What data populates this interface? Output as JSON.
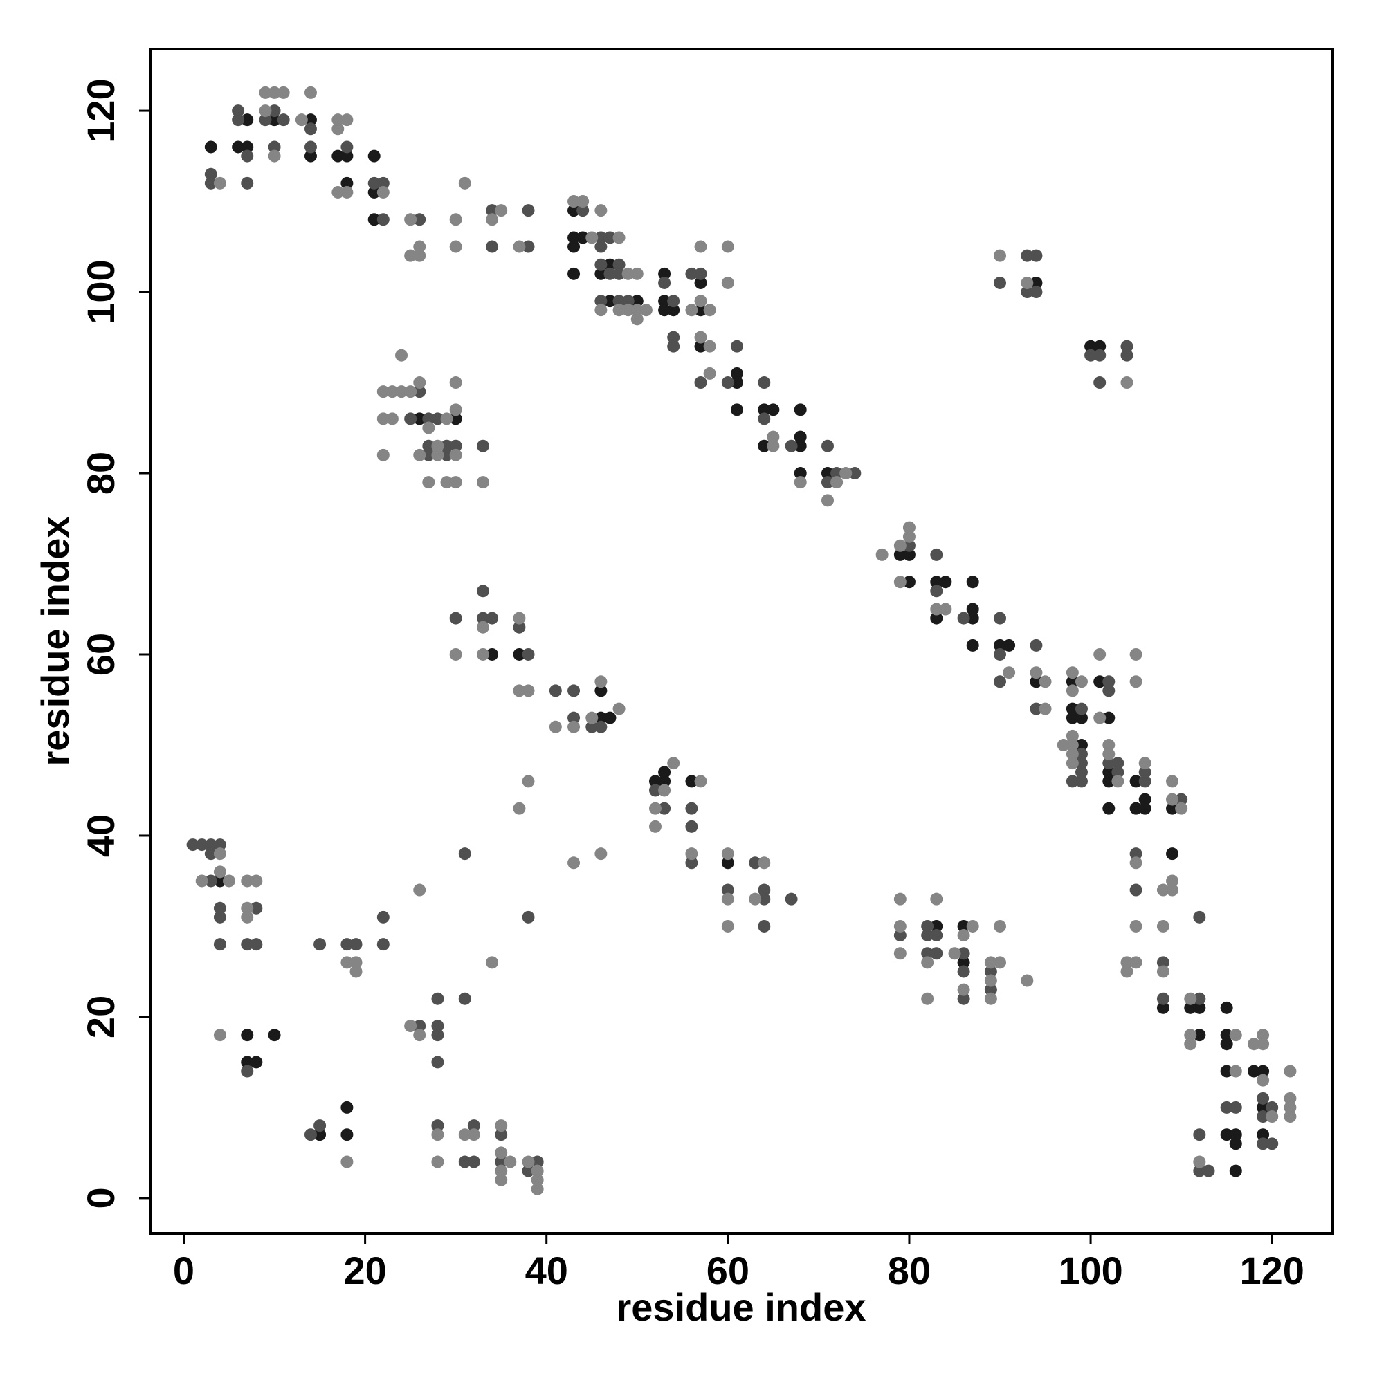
{
  "chart_data": {
    "type": "scatter",
    "x_label": "residue index",
    "y_label": "residue index",
    "xlim": [
      -3.7,
      126.7
    ],
    "ylim": [
      -3.9,
      126.8
    ],
    "xticks": [
      0,
      20,
      40,
      60,
      80,
      100,
      120
    ],
    "yticks": [
      0,
      20,
      40,
      60,
      80,
      100,
      120
    ],
    "grid": false,
    "series": [
      {
        "color": "#1a1a1a",
        "x": [
          3,
          6,
          7,
          7,
          10,
          14,
          14,
          17,
          18,
          18,
          21,
          21,
          21,
          43,
          43,
          43,
          43,
          44,
          46,
          47,
          47,
          50,
          53,
          53,
          53,
          54,
          57,
          57,
          57,
          61,
          61,
          61,
          64,
          64,
          65,
          68,
          68,
          68,
          68,
          71,
          26,
          30,
          34,
          37,
          46,
          46,
          47,
          52,
          53,
          53,
          56,
          60,
          4,
          7,
          7,
          8,
          10,
          15,
          18,
          18,
          94,
          100,
          101,
          79,
          80,
          80,
          83,
          83,
          84,
          87,
          87,
          87,
          87,
          90,
          91,
          94,
          98,
          98,
          98,
          99,
          99,
          101,
          102,
          102,
          102,
          102,
          105,
          105,
          106,
          106,
          109,
          109,
          108,
          111,
          112,
          112,
          115,
          115,
          115,
          115,
          115,
          116,
          116,
          116,
          118,
          119,
          119,
          119,
          83,
          86,
          86
        ],
        "values": [
          116,
          116,
          119,
          116,
          119,
          119,
          115,
          115,
          115,
          112,
          115,
          111,
          108,
          109,
          106,
          105,
          102,
          106,
          102,
          103,
          99,
          99,
          102,
          99,
          98,
          98,
          101,
          98,
          94,
          91,
          90,
          87,
          87,
          83,
          87,
          87,
          84,
          83,
          80,
          80,
          86,
          86,
          60,
          60,
          56,
          53,
          53,
          46,
          47,
          46,
          46,
          37,
          35,
          18,
          15,
          15,
          18,
          7,
          10,
          7,
          101,
          94,
          94,
          71,
          71,
          68,
          68,
          64,
          68,
          68,
          65,
          64,
          61,
          61,
          61,
          57,
          57,
          54,
          53,
          53,
          50,
          57,
          53,
          47,
          46,
          43,
          46,
          43,
          44,
          43,
          43,
          38,
          21,
          21,
          21,
          18,
          21,
          18,
          17,
          14,
          7,
          7,
          6,
          3,
          14,
          14,
          10,
          7,
          30,
          30,
          26
        ]
      },
      {
        "color": "#505050",
        "x": [
          3,
          3,
          6,
          6,
          7,
          7,
          9,
          10,
          10,
          11,
          14,
          14,
          18,
          21,
          22,
          22,
          26,
          34,
          34,
          38,
          38,
          44,
          46,
          46,
          46,
          46,
          47,
          47,
          48,
          48,
          48,
          49,
          53,
          54,
          54,
          54,
          56,
          57,
          57,
          60,
          61,
          64,
          64,
          67,
          71,
          71,
          72,
          74,
          26,
          25,
          27,
          28,
          27,
          27,
          29,
          29,
          30,
          33,
          30,
          33,
          33,
          34,
          37,
          38,
          41,
          43,
          43,
          45,
          46,
          52,
          53,
          56,
          56,
          56,
          60,
          63,
          64,
          64,
          64,
          67,
          38,
          31,
          1,
          2,
          3,
          3,
          4,
          3,
          4,
          4,
          4,
          8,
          7,
          8,
          7,
          15,
          18,
          19,
          22,
          22,
          14,
          15,
          26,
          28,
          28,
          28,
          28,
          31,
          28,
          31,
          32,
          32,
          35,
          35,
          38,
          39,
          90,
          93,
          93,
          94,
          94,
          100,
          101,
          101,
          104,
          104,
          80,
          83,
          83,
          86,
          90,
          90,
          90,
          94,
          94,
          98,
          99,
          99,
          99,
          99,
          99,
          102,
          102,
          102,
          103,
          103,
          106,
          106,
          110,
          105,
          105,
          108,
          108,
          112,
          112,
          115,
          116,
          112,
          112,
          113,
          119,
          119,
          120,
          119,
          120,
          79,
          82,
          82,
          82,
          83,
          83,
          86,
          86,
          86,
          89,
          89
        ],
        "values": [
          113,
          112,
          120,
          119,
          115,
          112,
          119,
          120,
          116,
          119,
          118,
          116,
          116,
          112,
          112,
          108,
          108,
          109,
          105,
          109,
          105,
          109,
          106,
          105,
          103,
          99,
          106,
          102,
          103,
          102,
          99,
          99,
          101,
          99,
          95,
          94,
          102,
          102,
          90,
          90,
          94,
          90,
          86,
          83,
          83,
          79,
          80,
          80,
          89,
          86,
          86,
          86,
          83,
          82,
          83,
          82,
          83,
          83,
          64,
          67,
          64,
          64,
          63,
          60,
          56,
          56,
          53,
          52,
          52,
          45,
          43,
          43,
          41,
          37,
          34,
          37,
          34,
          33,
          30,
          33,
          31,
          38,
          39,
          39,
          39,
          38,
          39,
          35,
          32,
          31,
          28,
          32,
          28,
          28,
          14,
          28,
          28,
          28,
          31,
          28,
          7,
          8,
          19,
          22,
          19,
          18,
          15,
          22,
          8,
          4,
          8,
          4,
          7,
          4,
          3,
          4,
          101,
          104,
          100,
          104,
          100,
          93,
          93,
          90,
          94,
          93,
          72,
          71,
          67,
          64,
          64,
          60,
          57,
          61,
          54,
          46,
          54,
          49,
          48,
          47,
          46,
          57,
          56,
          48,
          48,
          47,
          47,
          46,
          44,
          38,
          34,
          26,
          22,
          31,
          22,
          10,
          10,
          7,
          3,
          3,
          11,
          9,
          10,
          6,
          6,
          29,
          30,
          29,
          27,
          29,
          27,
          27,
          25,
          22,
          25,
          23
        ]
      },
      {
        "color": "#858585",
        "x": [
          4,
          9,
          9,
          10,
          10,
          11,
          13,
          14,
          17,
          17,
          17,
          18,
          18,
          22,
          25,
          25,
          26,
          26,
          30,
          30,
          31,
          34,
          35,
          37,
          43,
          44,
          45,
          46,
          46,
          48,
          48,
          49,
          49,
          50,
          50,
          50,
          51,
          56,
          57,
          57,
          57,
          58,
          58,
          58,
          60,
          60,
          65,
          65,
          68,
          71,
          72,
          73,
          24,
          22,
          23,
          24,
          25,
          26,
          22,
          23,
          22,
          26,
          27,
          28,
          28,
          27,
          29,
          29,
          30,
          30,
          30,
          30,
          33,
          30,
          33,
          33,
          37,
          37,
          38,
          41,
          43,
          45,
          46,
          48,
          52,
          52,
          53,
          54,
          57,
          56,
          60,
          60,
          60,
          63,
          64,
          37,
          38,
          26,
          34,
          43,
          46,
          4,
          2,
          4,
          5,
          7,
          7,
          7,
          8,
          4,
          18,
          19,
          19,
          18,
          25,
          26,
          28,
          28,
          31,
          32,
          35,
          35,
          35,
          35,
          36,
          38,
          39,
          39,
          39,
          90,
          93,
          104,
          77,
          79,
          79,
          80,
          80,
          83,
          84,
          91,
          94,
          95,
          95,
          97,
          98,
          98,
          98,
          98,
          98,
          98,
          99,
          101,
          101,
          102,
          102,
          103,
          105,
          105,
          106,
          109,
          109,
          110,
          105,
          105,
          104,
          104,
          105,
          108,
          108,
          108,
          109,
          109,
          111,
          111,
          111,
          116,
          116,
          112,
          118,
          119,
          119,
          119,
          120,
          122,
          122,
          122,
          122,
          79,
          79,
          79,
          82,
          82,
          83,
          85,
          86,
          86,
          87,
          89,
          89,
          89,
          90,
          90,
          93
        ],
        "values": [
          112,
          122,
          120,
          122,
          115,
          122,
          119,
          122,
          119,
          118,
          111,
          119,
          111,
          111,
          108,
          104,
          105,
          104,
          108,
          105,
          112,
          108,
          109,
          105,
          110,
          110,
          106,
          109,
          98,
          106,
          98,
          102,
          98,
          102,
          98,
          97,
          98,
          98,
          105,
          99,
          95,
          98,
          94,
          91,
          105,
          101,
          84,
          83,
          79,
          77,
          79,
          80,
          93,
          89,
          89,
          89,
          89,
          90,
          86,
          86,
          82,
          82,
          85,
          83,
          82,
          79,
          86,
          79,
          90,
          87,
          82,
          79,
          79,
          60,
          63,
          60,
          64,
          56,
          56,
          52,
          52,
          53,
          57,
          54,
          43,
          41,
          45,
          48,
          46,
          38,
          38,
          33,
          30,
          33,
          37,
          43,
          46,
          34,
          26,
          37,
          38,
          38,
          35,
          36,
          35,
          35,
          32,
          31,
          35,
          18,
          26,
          26,
          25,
          4,
          19,
          18,
          7,
          4,
          7,
          7,
          8,
          5,
          3,
          2,
          4,
          4,
          3,
          2,
          1,
          104,
          101,
          90,
          71,
          72,
          68,
          74,
          73,
          65,
          65,
          58,
          58,
          57,
          54,
          50,
          58,
          56,
          51,
          50,
          49,
          48,
          57,
          60,
          53,
          50,
          49,
          46,
          60,
          57,
          48,
          46,
          44,
          43,
          37,
          30,
          26,
          25,
          26,
          34,
          30,
          25,
          35,
          34,
          22,
          18,
          17,
          18,
          14,
          4,
          17,
          18,
          17,
          13,
          9,
          14,
          11,
          10,
          9,
          33,
          30,
          27,
          26,
          22,
          33,
          27,
          29,
          23,
          30,
          26,
          24,
          22,
          30,
          26,
          24
        ]
      }
    ]
  }
}
